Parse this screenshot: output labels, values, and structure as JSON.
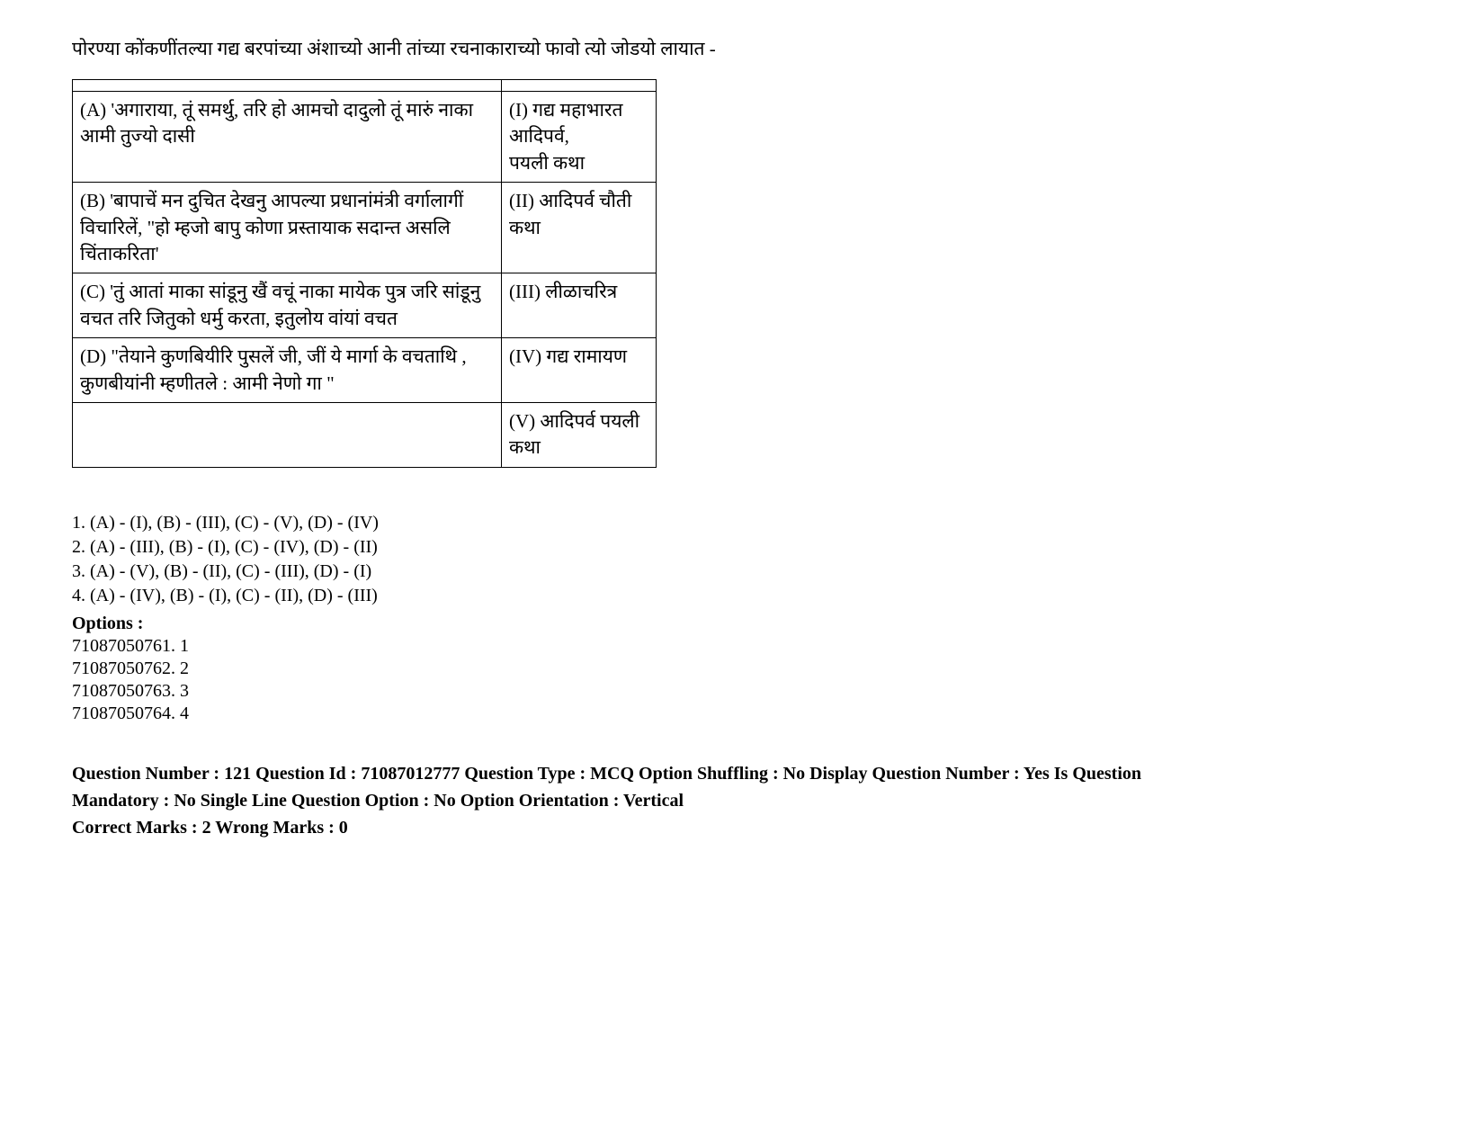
{
  "question_text": "पोरण्या कोंकणींतल्या गद्य बरपांच्या अंशाच्यो आनी तांच्या रचनाकाराच्यो फावो त्यो जोडयो लायात -",
  "table": {
    "rows": [
      {
        "left": "",
        "right": ""
      },
      {
        "left": "(A) 'अगाराया, तूं समर्थु, तरि हो आमचो दादुलो तूं मारुं नाका आमी तुज्यो दासी",
        "right": "(I) गद्य महाभारत\nआदिपर्व,\nपयली कथा"
      },
      {
        "left": "(B) 'बापाचें मन दुचित देखनु आपल्या प्रधानांमंत्री वर्गालागीं विचारिलें, \"हो म्हजो बापु कोणा प्रस्तायाक सदान्त असलि चिंताकरिता'",
        "right": "(II) आदिपर्व चौती कथा"
      },
      {
        "left": "(C) 'तुं आतां माका सांडूनु खैं वचूं नाका मायेक पुत्र जरि सांडूनु वचत तरि जितुको धर्मु करता, इतुलोय वांयां वचत",
        "right": "(III) लीळाचरित्र"
      },
      {
        "left": "(D) \"तेयाने कुणबियीरि पुसलें जी, जीं ये मार्गा के वचताथि , कुणबीयांनी म्हणीतले : आमी नेणो गा \"",
        "right": "(IV) गद्य रामायण"
      },
      {
        "left": "",
        "right": "(V) आदिपर्व पयली  कथा"
      }
    ]
  },
  "choices": [
    "1. (A) - (I), (B) - (III), (C) - (V), (D) - (IV)",
    "2. (A) - (III), (B) - (I), (C) - (IV), (D) - (II)",
    "3. (A) - (V), (B) - (II), (C) - (III), (D) - (I)",
    "4. (A) - (IV), (B) - (I), (C) - (II), (D) - (III)"
  ],
  "options_label": "Options :",
  "options": [
    "71087050761. 1",
    "71087050762. 2",
    "71087050763. 3",
    "71087050764. 4"
  ],
  "meta": "Question Number : 121 Question Id : 71087012777 Question Type : MCQ Option Shuffling : No Display Question Number : Yes Is Question Mandatory : No Single Line Question Option : No Option Orientation : Vertical",
  "meta2": "Correct Marks : 2 Wrong Marks : 0"
}
